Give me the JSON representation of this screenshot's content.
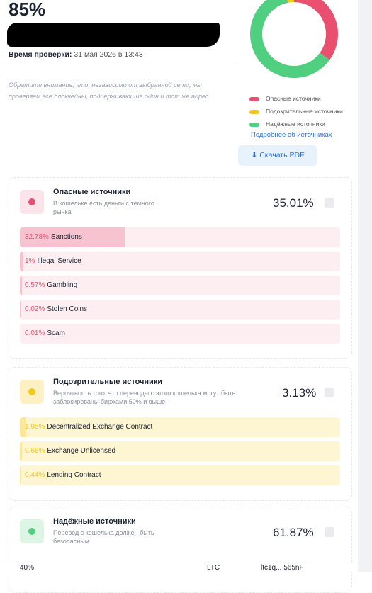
{
  "score": "85%",
  "check_time": {
    "label": "Время проверки:",
    "value": "31 мая 2026 в 13:43"
  },
  "note": "Обратите внимание, что, независимо от выбранной сети, мы проверяем все блокчейны, поддерживающие один и тот же адрес",
  "more_link": "Подробнее об источниках",
  "download": "Скачать PDF",
  "groups": [
    {
      "title": "Опасные источники",
      "description": "В кошельке есть деньги с тёмного рынка",
      "color": "#e9506f",
      "light": "#fdeef1",
      "bar": "#f8c3d0",
      "icon": "#fbe4ea",
      "total": {
        "value": 35.01,
        "label": "35.01%"
      },
      "items": [
        {
          "value": 32.78,
          "label": "32.78%",
          "name": "Sanctions"
        },
        {
          "value": 1,
          "label": "1%",
          "name": "Illegal Service"
        },
        {
          "value": 0.57,
          "label": "0.57%",
          "name": "Gambling"
        },
        {
          "value": 0.02,
          "label": "0.02%",
          "name": "Stolen Coins"
        },
        {
          "value": 0.01,
          "label": "0.01%",
          "name": "Scam"
        }
      ]
    },
    {
      "title": "Подозрительные источники",
      "description": "Вероятность того, что переводы с этого кошелька могут быть заблокированы биржами 50% и выше",
      "color": "#f2c81c",
      "light": "#fef5d3",
      "bar": "#fbe69a",
      "icon": "#fdf1c4",
      "total": {
        "value": 3.13,
        "label": "3.13%"
      },
      "items": [
        {
          "value": 1.95,
          "label": "1.95%",
          "name": "Decentralized Exchange Contract"
        },
        {
          "value": 0.68,
          "label": "0.68%",
          "name": "Exchange Unlicensed"
        },
        {
          "value": 0.44,
          "label": "0.44%",
          "name": "Lending Contract"
        }
      ]
    },
    {
      "title": "Надёжные источники",
      "description": "Перевод с кошелька должен быть безопасным",
      "color": "#4fcf7f",
      "light": "#e6f8ec",
      "bar": "#bfeccf",
      "icon": "#dcf5e5",
      "total": {
        "value": 61.87,
        "label": "61.87%"
      },
      "items": []
    }
  ],
  "footer": [
    "40%",
    "LTC",
    "ltc1q... 565nF"
  ]
}
